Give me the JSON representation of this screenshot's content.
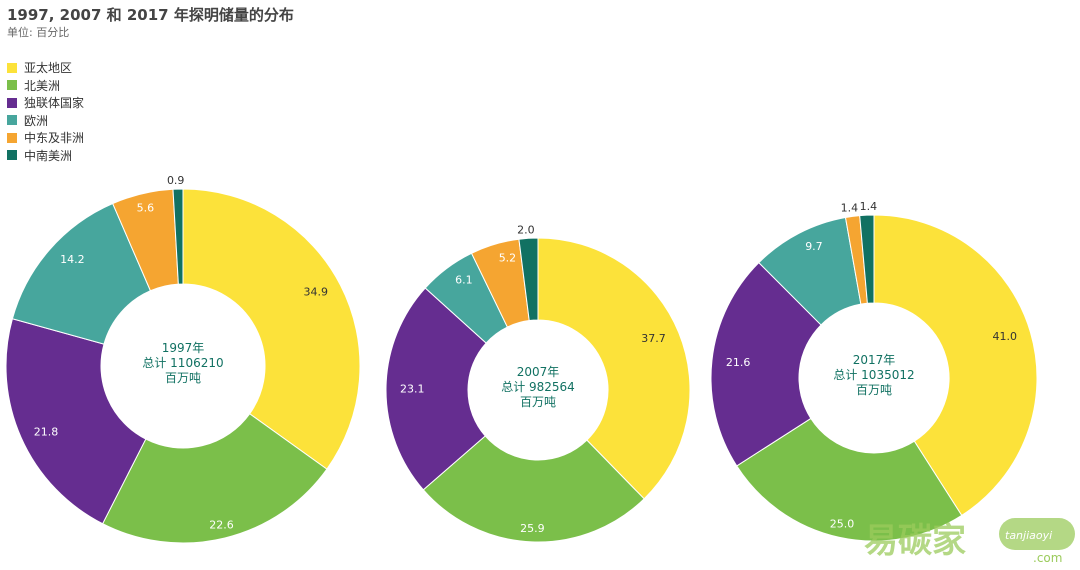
{
  "header": {
    "title": "1997, 2007 和 2017 年探明储量的分布",
    "unit": "单位: 百分比"
  },
  "legend": [
    {
      "label": "亚太地区",
      "color": "#FCE23A"
    },
    {
      "label": "北美洲",
      "color": "#7BBF4A"
    },
    {
      "label": "独联体国家",
      "color": "#652D90"
    },
    {
      "label": "欧洲",
      "color": "#47A69D"
    },
    {
      "label": "中东及非洲",
      "color": "#F5A531"
    },
    {
      "label": "中南美洲",
      "color": "#117162"
    }
  ],
  "chart_data": [
    {
      "type": "pie",
      "donut": true,
      "center_label": [
        "1997年",
        "总计 1106210",
        "百万吨"
      ],
      "categories": [
        "亚太地区",
        "北美洲",
        "独联体国家",
        "欧洲",
        "中东及非洲",
        "中南美洲"
      ],
      "values": [
        34.9,
        22.6,
        21.8,
        14.2,
        5.6,
        0.9
      ],
      "data_labels": [
        "34.9",
        "22.6",
        "21.8",
        "14.2",
        "5.6",
        "0.9"
      ]
    },
    {
      "type": "pie",
      "donut": true,
      "center_label": [
        "2007年",
        "总计 982564",
        "百万吨"
      ],
      "categories": [
        "亚太地区",
        "北美洲",
        "独联体国家",
        "欧洲",
        "中东及非洲",
        "中南美洲"
      ],
      "values": [
        37.7,
        25.9,
        23.1,
        6.1,
        5.2,
        2.0
      ],
      "data_labels": [
        "37.7",
        "25.9",
        "23.1",
        "6.1",
        "5.2",
        "2.0"
      ]
    },
    {
      "type": "pie",
      "donut": true,
      "center_label": [
        "2017年",
        "总计 1035012",
        "百万吨"
      ],
      "categories": [
        "亚太地区",
        "北美洲",
        "独联体国家",
        "欧洲",
        "中东及非洲",
        "中南美洲"
      ],
      "values": [
        41.0,
        25.0,
        21.6,
        9.7,
        1.4,
        1.4
      ],
      "data_labels": [
        "41.0",
        "25.0",
        "21.6",
        "9.7",
        "1.4",
        "1.4"
      ]
    }
  ],
  "watermark": {
    "brand": "易碳家",
    "domain": "tanjiaoyi",
    "tld": ".com"
  }
}
